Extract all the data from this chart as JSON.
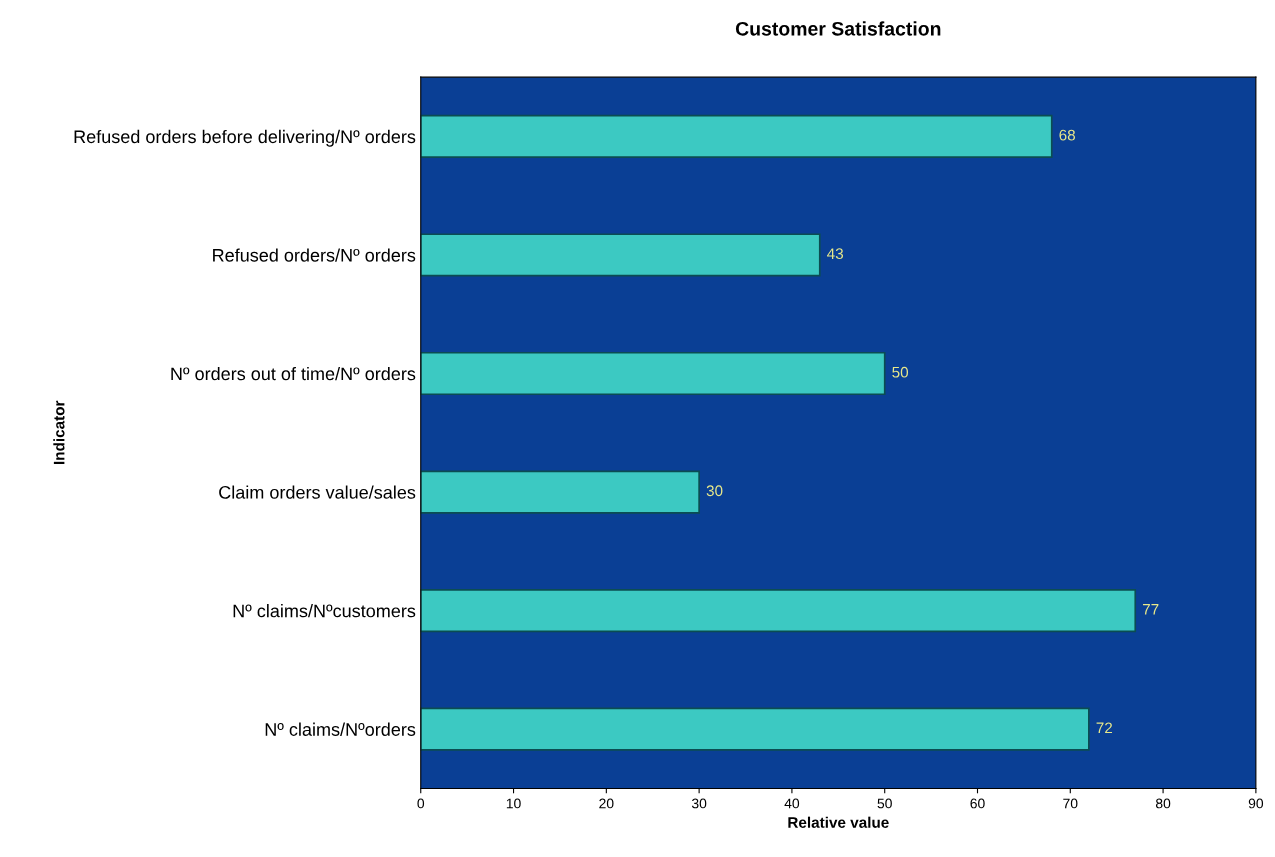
{
  "chart_data": {
    "type": "bar",
    "orientation": "horizontal",
    "title": "Customer Satisfaction",
    "xlabel": "Relative value",
    "ylabel": "Indicator",
    "categories": [
      "Refused orders before delivering/Nº orders",
      "Refused orders/Nº orders",
      "Nº orders out of time/Nº orders",
      "Claim orders value/sales",
      "Nº claims/Nºcustomers",
      "Nº claims/Nºorders"
    ],
    "values": [
      68,
      43,
      50,
      30,
      77,
      72
    ],
    "color": "#3cc9c2",
    "xlim": [
      0,
      90
    ],
    "xticks": [
      0,
      10,
      20,
      30,
      40,
      50,
      60,
      70,
      80,
      90
    ],
    "data_labels": true,
    "grid": false,
    "legend": false
  }
}
